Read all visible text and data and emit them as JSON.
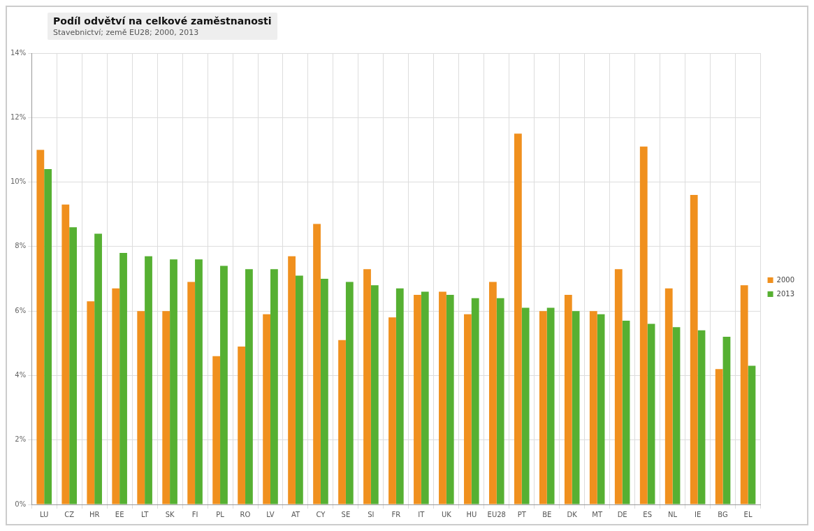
{
  "chart_data": {
    "type": "bar",
    "title": "Podíl odvětví na celkové zaměstnanosti",
    "subtitle": "Stavebnictví; země EU28; 2000, 2013",
    "categories": [
      "LU",
      "CZ",
      "HR",
      "EE",
      "LT",
      "SK",
      "FI",
      "PL",
      "RO",
      "LV",
      "AT",
      "CY",
      "SE",
      "SI",
      "FR",
      "IT",
      "UK",
      "HU",
      "EU28",
      "PT",
      "BE",
      "DK",
      "MT",
      "DE",
      "ES",
      "NL",
      "IE",
      "BG",
      "EL"
    ],
    "series": [
      {
        "name": "2000",
        "color": "#f0901e",
        "values": [
          11.0,
          9.3,
          6.3,
          6.7,
          6.0,
          6.0,
          6.9,
          4.6,
          4.9,
          5.9,
          7.7,
          8.7,
          5.1,
          7.3,
          5.8,
          6.5,
          6.6,
          5.9,
          6.9,
          11.5,
          6.0,
          6.5,
          6.0,
          7.3,
          11.1,
          6.7,
          9.6,
          4.2,
          6.8
        ]
      },
      {
        "name": "2013",
        "color": "#56b032",
        "values": [
          10.4,
          8.6,
          8.4,
          7.8,
          7.7,
          7.6,
          7.6,
          7.4,
          7.3,
          7.3,
          7.1,
          7.0,
          6.9,
          6.8,
          6.7,
          6.6,
          6.5,
          6.4,
          6.4,
          6.1,
          6.1,
          6.0,
          5.9,
          5.7,
          5.6,
          5.5,
          5.4,
          5.2,
          4.3
        ]
      }
    ],
    "ylim": [
      0,
      14
    ],
    "yticks": [
      {
        "value": 0,
        "label": "0%"
      },
      {
        "value": 2,
        "label": "2%"
      },
      {
        "value": 4,
        "label": "4%"
      },
      {
        "value": 6,
        "label": "6%"
      },
      {
        "value": 8,
        "label": "8%"
      },
      {
        "value": 10,
        "label": "10%"
      },
      {
        "value": 12,
        "label": "12%"
      },
      {
        "value": 14,
        "label": "14%"
      }
    ],
    "grid": true,
    "legend": "right"
  }
}
